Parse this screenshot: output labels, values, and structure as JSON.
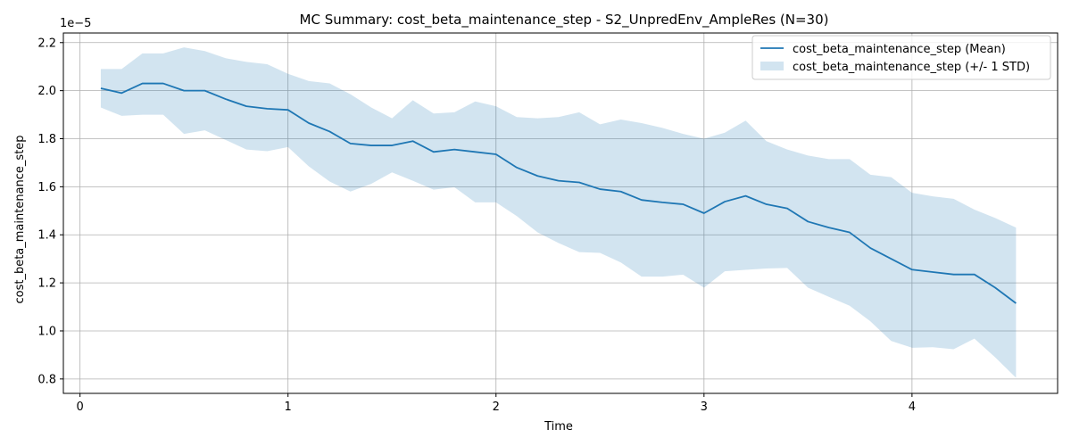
{
  "chart_data": {
    "type": "line",
    "title": "MC Summary: cost_beta_maintenance_step - S2_UnpredEnv_AmpleRes (N=30)",
    "xlabel": "Time",
    "ylabel": "cost_beta_maintenance_step",
    "y_offset_label": "1e−5",
    "y_scale": 1e-05,
    "xlim": [
      -0.08,
      4.7
    ],
    "ylim": [
      0.74,
      2.24
    ],
    "x_ticks": [
      0,
      1,
      2,
      3,
      4
    ],
    "x_tick_labels": [
      "0",
      "1",
      "2",
      "3",
      "4"
    ],
    "y_ticks": [
      0.8,
      1.0,
      1.2,
      1.4,
      1.6,
      1.8,
      2.0,
      2.2
    ],
    "y_tick_labels": [
      "0.8",
      "1.0",
      "1.2",
      "1.4",
      "1.6",
      "1.8",
      "2.0",
      "2.2"
    ],
    "grid": true,
    "legend_position": "top-right",
    "x": [
      0.1,
      0.2,
      0.3,
      0.4,
      0.5,
      0.6,
      0.7,
      0.8,
      0.9,
      1.0,
      1.1,
      1.2,
      1.3,
      1.4,
      1.5,
      1.6,
      1.7,
      1.8,
      1.9,
      2.0,
      2.1,
      2.2,
      2.3,
      2.4,
      2.5,
      2.6,
      2.7,
      2.8,
      2.9,
      3.0,
      3.1,
      3.2,
      3.3,
      3.4,
      3.5,
      3.6,
      3.7,
      3.8,
      3.9,
      4.0,
      4.1,
      4.2,
      4.3,
      4.4,
      4.5
    ],
    "series": [
      {
        "name": "cost_beta_maintenance_step (Mean)",
        "type": "line",
        "color": "#1f77b4",
        "values": [
          2.01,
          1.99,
          2.03,
          2.03,
          2.0,
          2.0,
          1.965,
          1.935,
          1.925,
          1.92,
          1.865,
          1.83,
          1.78,
          1.772,
          1.772,
          1.79,
          1.745,
          1.755,
          1.745,
          1.735,
          1.68,
          1.645,
          1.625,
          1.618,
          1.59,
          1.58,
          1.545,
          1.535,
          1.527,
          1.49,
          1.538,
          1.562,
          1.527,
          1.51,
          1.455,
          1.43,
          1.41,
          1.345,
          1.3,
          1.255,
          1.245,
          1.235,
          1.235,
          1.18,
          1.115
        ]
      },
      {
        "name": "cost_beta_maintenance_step (+/- 1 STD)",
        "type": "band",
        "color": "#1f77b4",
        "opacity": 0.2,
        "upper": [
          2.09,
          2.09,
          2.155,
          2.155,
          2.18,
          2.165,
          2.135,
          2.12,
          2.11,
          2.07,
          2.04,
          2.03,
          1.985,
          1.93,
          1.885,
          1.96,
          1.905,
          1.91,
          1.955,
          1.935,
          1.89,
          1.885,
          1.89,
          1.91,
          1.86,
          1.88,
          1.865,
          1.845,
          1.82,
          1.8,
          1.825,
          1.875,
          1.79,
          1.755,
          1.73,
          1.715,
          1.715,
          1.65,
          1.64,
          1.575,
          1.56,
          1.55,
          1.505,
          1.47,
          1.43
        ],
        "lower": [
          1.93,
          1.895,
          1.9,
          1.9,
          1.82,
          1.835,
          1.795,
          1.755,
          1.748,
          1.765,
          1.685,
          1.622,
          1.58,
          1.612,
          1.66,
          1.625,
          1.588,
          1.598,
          1.535,
          1.535,
          1.478,
          1.41,
          1.366,
          1.328,
          1.325,
          1.285,
          1.226,
          1.226,
          1.234,
          1.18,
          1.248,
          1.254,
          1.26,
          1.262,
          1.18,
          1.142,
          1.105,
          1.04,
          0.958,
          0.93,
          0.932,
          0.924,
          0.968,
          0.89,
          0.805
        ]
      }
    ]
  }
}
